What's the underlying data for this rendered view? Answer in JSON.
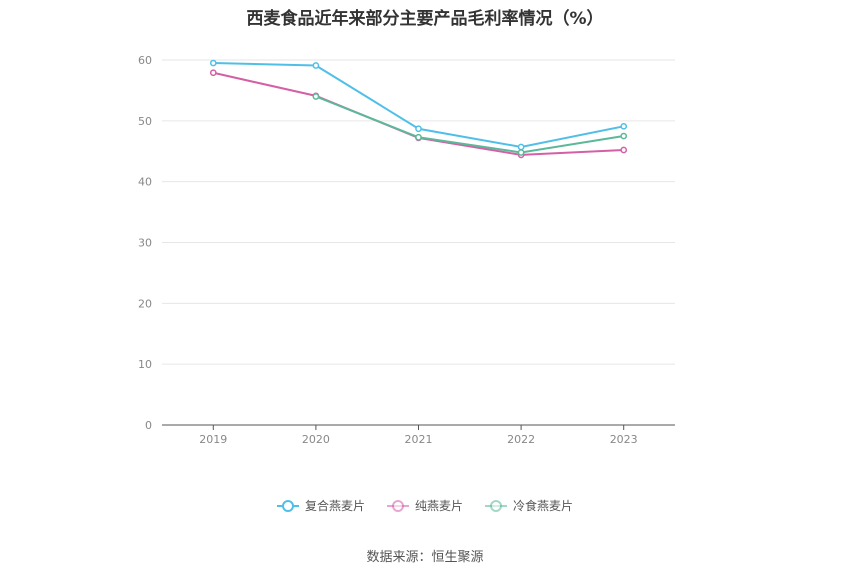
{
  "title": "西麦食品近年来部分主要产品毛利率情况（%）",
  "source": "数据来源：恒生聚源",
  "chart_data": {
    "type": "line",
    "title": "西麦食品近年来部分主要产品毛利率情况（%）",
    "categories": [
      "2019",
      "2020",
      "2021",
      "2022",
      "2023"
    ],
    "ylim": [
      0,
      60
    ],
    "yticks": [
      0,
      10,
      20,
      30,
      40,
      50,
      60
    ],
    "grid": true,
    "legend_position": "bottom",
    "series": [
      {
        "name": "复合燕麦片",
        "color": "#4fbfe8",
        "values": [
          59.5,
          59.1,
          48.7,
          45.7,
          49.1
        ]
      },
      {
        "name": "纯燕麦片",
        "color": "#d55fa5",
        "values": [
          57.9,
          54.1,
          47.2,
          44.4,
          45.2
        ]
      },
      {
        "name": "冷食燕麦片",
        "color": "#5bb89a",
        "values": [
          null,
          54.0,
          47.3,
          44.8,
          47.5
        ]
      }
    ]
  }
}
